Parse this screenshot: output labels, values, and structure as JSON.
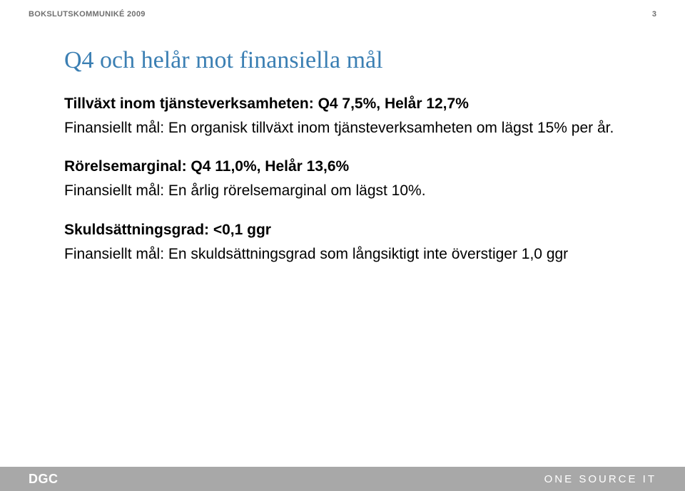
{
  "header": {
    "doc_label": "BOKSLUTSKOMMUNIKÉ 2009",
    "page_number": "3",
    "label_color": "#6f6f6f",
    "page_color": "#6f6f6f"
  },
  "title": {
    "text": "Q4 och helår mot finansiella mål",
    "color": "#3b7fb3"
  },
  "sections": [
    {
      "heading": "Tillväxt inom tjänsteverksamheten: Q4 7,5%, Helår 12,7%",
      "body": "Finansiellt mål: En organisk tillväxt inom tjänsteverksamheten om lägst 15% per år."
    },
    {
      "heading": "Rörelsemarginal: Q4 11,0%, Helår 13,6%",
      "body": "Finansiellt mål: En årlig rörelsemarginal om lägst 10%."
    },
    {
      "heading": "Skuldsättningsgrad: <0,1 ggr",
      "body": "Finansiellt mål: En skuldsättningsgrad som långsiktigt inte överstiger 1,0 ggr"
    }
  ],
  "text_color": "#000000",
  "footer": {
    "left_text": "DGC",
    "right_text": "ONE SOURCE IT",
    "bg_color": "#a8a8a8",
    "text_color": "#ffffff"
  }
}
